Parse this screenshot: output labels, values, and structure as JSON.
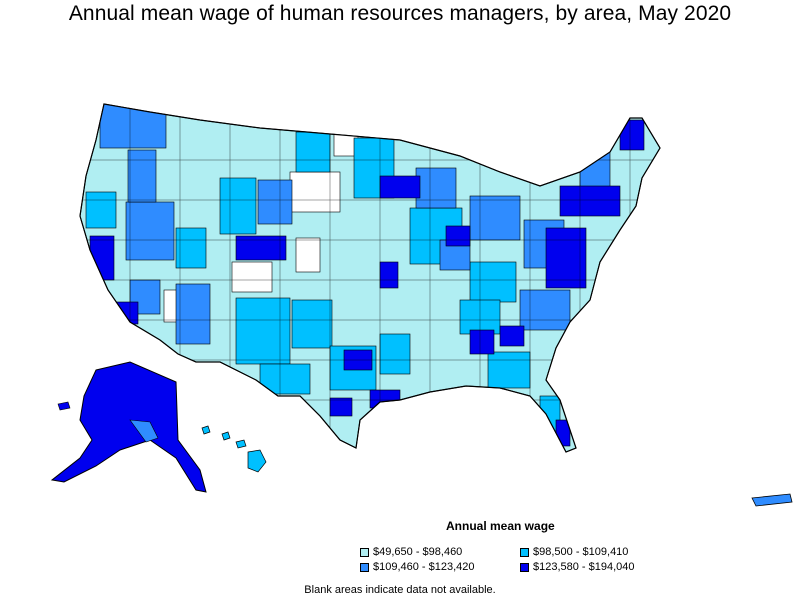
{
  "title": "Annual mean wage of human resources managers, by area, May 2020",
  "legend": {
    "title": "Annual mean wage",
    "items": [
      {
        "label": "$49,650 - $98,460",
        "color": "#b0eef2"
      },
      {
        "label": "$98,500 - $109,410",
        "color": "#00c0ff"
      },
      {
        "label": "$109,460 - $123,420",
        "color": "#2f8cff"
      },
      {
        "label": "$123,580 - $194,040",
        "color": "#0000ee"
      }
    ]
  },
  "footnote": "Blank areas indicate data not available.",
  "colors": {
    "tier1": "#b0eef2",
    "tier2": "#00c0ff",
    "tier3": "#2f8cff",
    "tier4": "#0000ee",
    "blank": "#ffffff",
    "border": "#000000"
  }
}
